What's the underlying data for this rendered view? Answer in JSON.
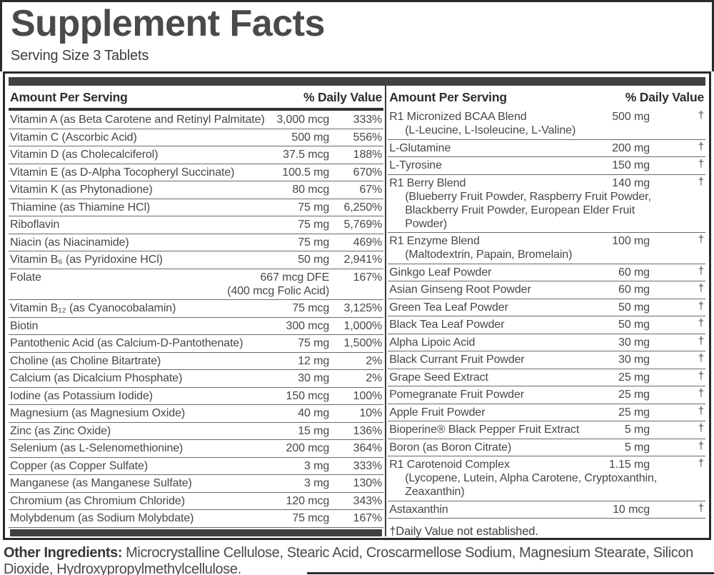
{
  "title": "Supplement Facts",
  "serving_size": "Serving Size 3 Tablets",
  "colors": {
    "border": "#2a2a2a",
    "bar": "#414141",
    "ink": "#444444",
    "line": "#6a6a6a",
    "title-ink": "#4a4a4a"
  },
  "columns": [
    {
      "header": {
        "amount": "Amount Per Serving",
        "daily_value": "% Daily Value"
      },
      "rows": [
        {
          "name": "Vitamin A (as Beta Carotene and Retinyl Palmitate)",
          "amount": "3,000 mcg",
          "dv": "333%"
        },
        {
          "name": "Vitamin C (Ascorbic Acid)",
          "amount": "500 mg",
          "dv": "556%"
        },
        {
          "name": "Vitamin D (as Cholecalciferol)",
          "amount": "37.5 mcg",
          "dv": "188%"
        },
        {
          "name": "Vitamin E (as D-Alpha Tocopheryl Succinate)",
          "amount": "100.5 mg",
          "dv": "670%"
        },
        {
          "name": "Vitamin K (as Phytonadione)",
          "amount": "80 mcg",
          "dv": "67%"
        },
        {
          "name": "Thiamine (as Thiamine HCl)",
          "amount": "75 mg",
          "dv": "6,250%"
        },
        {
          "name": "Riboflavin",
          "amount": "75 mg",
          "dv": "5,769%"
        },
        {
          "name": "Niacin (as Niacinamide)",
          "amount": "75 mg",
          "dv": "469%"
        },
        {
          "name": "Vitamin B₆ (as Pyridoxine HCl)",
          "amount": "50 mg",
          "dv": "2,941%"
        },
        {
          "name": "Folate",
          "amount": "667 mcg DFE",
          "amount2": "(400 mcg Folic Acid)",
          "dv": "167%"
        },
        {
          "name": "Vitamin B₁₂ (as Cyanocobalamin)",
          "amount": "75 mcg",
          "dv": "3,125%"
        },
        {
          "name": "Biotin",
          "amount": "300 mcg",
          "dv": "1,000%"
        },
        {
          "name": "Pantothenic Acid (as Calcium-D-Pantothenate)",
          "amount": "75 mg",
          "dv": "1,500%"
        },
        {
          "name": "Choline (as Choline Bitartrate)",
          "amount": "12 mg",
          "dv": "2%"
        },
        {
          "name": "Calcium (as Dicalcium Phosphate)",
          "amount": "30 mg",
          "dv": "2%"
        },
        {
          "name": "Iodine (as Potassium Iodide)",
          "amount": "150 mcg",
          "dv": "100%"
        },
        {
          "name": "Magnesium (as Magnesium Oxide)",
          "amount": "40 mg",
          "dv": "10%"
        },
        {
          "name": "Zinc (as Zinc Oxide)",
          "amount": "15 mg",
          "dv": "136%"
        },
        {
          "name": "Selenium (as L-Selenomethionine)",
          "amount": "200 mcg",
          "dv": "364%"
        },
        {
          "name": "Copper (as Copper Sulfate)",
          "amount": "3 mg",
          "dv": "333%"
        },
        {
          "name": "Manganese (as Manganese Sulfate)",
          "amount": "3 mg",
          "dv": "130%"
        },
        {
          "name": "Chromium (as Chromium Chloride)",
          "amount": "120 mcg",
          "dv": "343%"
        },
        {
          "name": "Molybdenum (as Sodium Molybdate)",
          "amount": "75 mcg",
          "dv": "167%"
        }
      ],
      "footnote": ""
    },
    {
      "header": {
        "amount": "Amount Per Serving",
        "daily_value": "% Daily Value"
      },
      "rows": [
        {
          "name": "R1 Micronized BCAA Blend",
          "sub": "(L-Leucine, L-Isoleucine, L-Valine)",
          "amount": "500 mg",
          "dv": "†"
        },
        {
          "name": "L-Glutamine",
          "amount": "200 mg",
          "dv": "†"
        },
        {
          "name": "L-Tyrosine",
          "amount": "150 mg",
          "dv": "†"
        },
        {
          "name": "R1 Berry Blend",
          "sub": "(Blueberry Fruit Powder, Raspberry Fruit Powder, Blackberry Fruit Powder, European Elder Fruit Powder)",
          "amount": "140 mg",
          "dv": "†"
        },
        {
          "name": "R1 Enzyme Blend",
          "sub": "(Maltodextrin, Papain, Bromelain)",
          "amount": "100 mg",
          "dv": "†"
        },
        {
          "name": "Ginkgo Leaf Powder",
          "amount": "60 mg",
          "dv": "†"
        },
        {
          "name": "Asian Ginseng Root Powder",
          "amount": "60 mg",
          "dv": "†"
        },
        {
          "name": "Green Tea Leaf Powder",
          "amount": "50 mg",
          "dv": "†"
        },
        {
          "name": "Black Tea Leaf Powder",
          "amount": "50 mg",
          "dv": "†"
        },
        {
          "name": "Alpha Lipoic Acid",
          "amount": "30 mg",
          "dv": "†"
        },
        {
          "name": "Black Currant Fruit Powder",
          "amount": "30 mg",
          "dv": "†"
        },
        {
          "name": "Grape Seed Extract",
          "amount": "25 mg",
          "dv": "†"
        },
        {
          "name": "Pomegranate Fruit Powder",
          "amount": "25 mg",
          "dv": "†"
        },
        {
          "name": "Apple Fruit Powder",
          "amount": "25 mg",
          "dv": "†"
        },
        {
          "name": "Bioperine® Black Pepper Fruit Extract",
          "amount": "5 mg",
          "dv": "†"
        },
        {
          "name": "Boron (as Boron Citrate)",
          "amount": "5 mg",
          "dv": "†"
        },
        {
          "name": "R1 Carotenoid Complex",
          "sub": "(Lycopene, Lutein, Alpha Carotene, Cryptoxanthin, Zeaxanthin)",
          "amount": "1.15 mg",
          "dv": "†"
        },
        {
          "name": "Astaxanthin",
          "amount": "10 mcg",
          "dv": "†"
        }
      ],
      "footnote": "†Daily Value not established."
    }
  ],
  "other_ingredients": {
    "label": "Other Ingredients:",
    "text": "Microcrystalline Cellulose, Stearic Acid, Croscarmellose Sodium, Magnesium Stearate, Silicon Dioxide, Hydroxypropylmethylcellulose."
  }
}
